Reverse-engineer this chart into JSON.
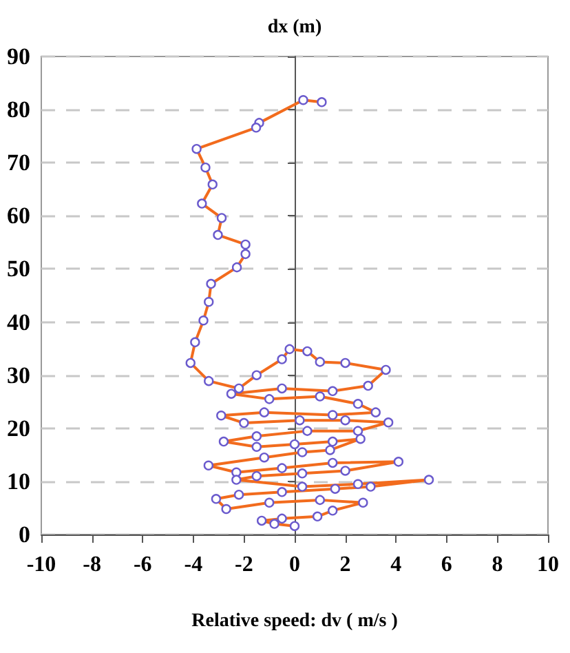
{
  "chart_data": {
    "type": "line",
    "xlabel": "Relative speed: dv ( m/s )",
    "ylabel": "dx (m)",
    "xlim": [
      -10,
      10
    ],
    "ylim": [
      0,
      90
    ],
    "xticks": [
      -10,
      -8,
      -6,
      -4,
      -2,
      0,
      2,
      4,
      6,
      8,
      10
    ],
    "yticks": [
      0,
      10,
      20,
      30,
      40,
      50,
      60,
      70,
      80,
      90
    ],
    "grid": "y",
    "marker": "circle",
    "line_style": "solid",
    "series": [
      {
        "color": "#f26b1d",
        "x": [
          1.07,
          0.34,
          -1.4,
          -1.52,
          -3.87,
          -3.52,
          -3.24,
          -3.66,
          -2.88,
          -3.03,
          -1.94,
          -1.94,
          -2.28,
          -3.3,
          -3.39,
          -3.6,
          -3.93,
          -4.11,
          -3.39,
          -2.2,
          -1.5,
          -0.5,
          -0.2,
          0.5,
          1.0,
          2.0,
          3.6,
          2.9,
          1.5,
          -0.5,
          -2.5,
          -1.0,
          1.0,
          2.5,
          3.2,
          1.5,
          -1.2,
          -2.9,
          -2.0,
          0.2,
          2.0,
          3.7,
          2.5,
          0.5,
          -1.5,
          -2.8,
          -1.5,
          0.0,
          1.5,
          2.6,
          1.4,
          0.3,
          -1.2,
          -3.4,
          -2.3,
          -0.5,
          1.5,
          4.1,
          2.0,
          0.3,
          -1.5,
          -2.3,
          0.3,
          2.5,
          5.3,
          3.0,
          1.6,
          -0.5,
          -2.2,
          -3.1,
          -2.7,
          -1.0,
          1.0,
          2.7,
          1.5,
          0.9,
          -0.5,
          -1.3,
          -0.8,
          0.0
        ],
        "values": [
          81.4,
          81.8,
          77.5,
          76.6,
          72.6,
          69.1,
          65.9,
          62.3,
          59.6,
          56.4,
          54.6,
          52.8,
          50.3,
          47.2,
          43.8,
          40.3,
          36.2,
          32.3,
          28.9,
          27.5,
          30,
          33,
          34.9,
          34.5,
          32.5,
          32.3,
          31.0,
          28.0,
          27,
          27.5,
          26.5,
          25.5,
          26,
          24.6,
          23,
          22.5,
          23,
          22.4,
          21,
          21.5,
          21.5,
          21.1,
          19.5,
          19.5,
          18.5,
          17.5,
          16.5,
          17,
          17.5,
          18,
          15.9,
          15.5,
          14.5,
          13.0,
          11.7,
          12.5,
          13.5,
          13.7,
          12.0,
          11.5,
          11.0,
          10.3,
          9.0,
          9.5,
          10.3,
          9.0,
          8.6,
          8.0,
          7.5,
          6.7,
          4.8,
          6.0,
          6.5,
          6.0,
          4.5,
          3.4,
          3.0,
          2.6,
          2.0,
          1.6
        ]
      }
    ]
  }
}
